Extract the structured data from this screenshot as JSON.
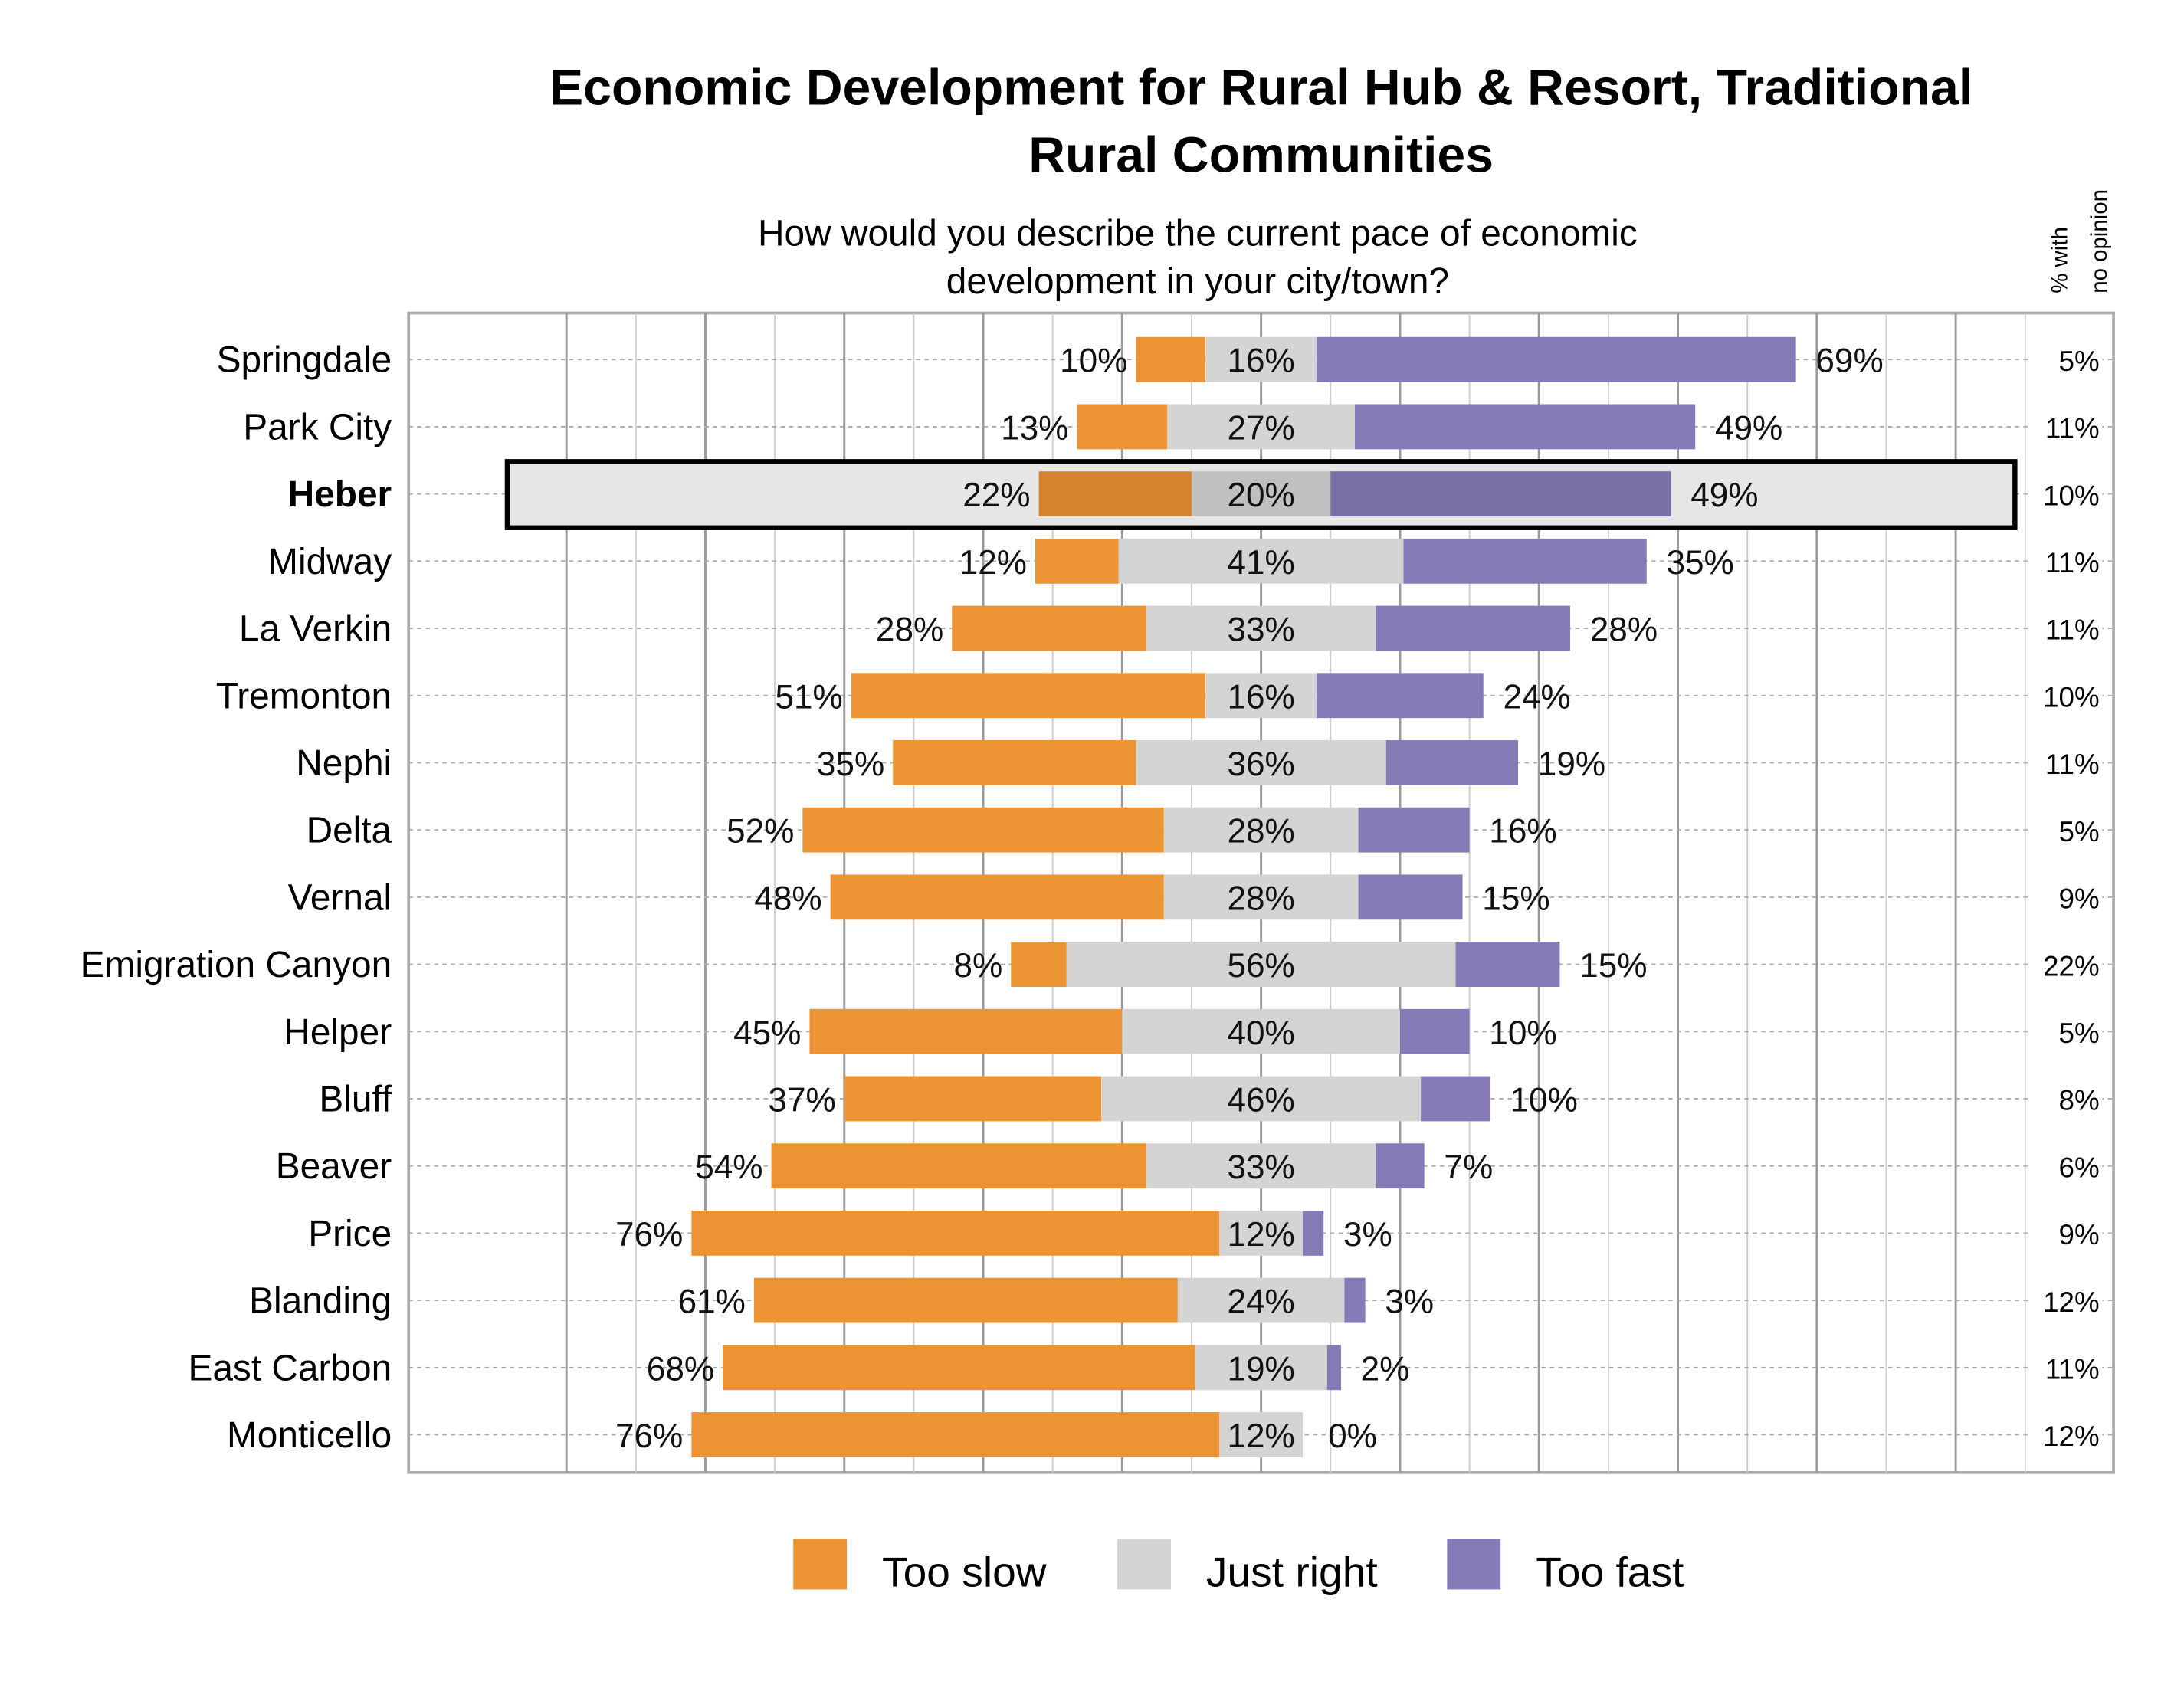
{
  "chart_data": {
    "type": "bar",
    "orientation": "horizontal",
    "stacked": "diverging",
    "title": "Economic Development for Rural Hub & Resort, Traditional Rural Communities",
    "title_lines": [
      "Economic Development for Rural Hub & Resort, Traditional",
      "Rural Communities"
    ],
    "subtitle_lines": [
      "How would you describe the current pace of economic",
      "development in your city/town?"
    ],
    "side_header_lines": [
      "% with",
      "no opinion"
    ],
    "highlighted_category": "Heber",
    "categories": [
      "Springdale",
      "Park City",
      "Heber",
      "Midway",
      "La Verkin",
      "Tremonton",
      "Nephi",
      "Delta",
      "Vernal",
      "Emigration Canyon",
      "Helper",
      "Bluff",
      "Beaver",
      "Price",
      "Blanding",
      "East Carbon",
      "Monticello"
    ],
    "series": [
      {
        "name": "Too slow",
        "color": "#EC9334",
        "values": [
          10,
          13,
          22,
          12,
          28,
          51,
          35,
          52,
          48,
          8,
          45,
          37,
          54,
          76,
          61,
          68,
          76
        ]
      },
      {
        "name": "Just right",
        "color": "#D4D4D4",
        "values": [
          16,
          27,
          20,
          41,
          33,
          16,
          36,
          28,
          28,
          56,
          40,
          46,
          33,
          12,
          24,
          19,
          12
        ]
      },
      {
        "name": "Too fast",
        "color": "#877BB7",
        "values": [
          69,
          49,
          49,
          35,
          28,
          24,
          19,
          16,
          15,
          15,
          10,
          10,
          7,
          3,
          3,
          2,
          0
        ]
      }
    ],
    "no_opinion": [
      5,
      11,
      10,
      11,
      11,
      10,
      11,
      5,
      9,
      22,
      5,
      8,
      6,
      9,
      12,
      11,
      12
    ],
    "value_suffix": "%",
    "legend_position": "bottom",
    "grid": true
  }
}
